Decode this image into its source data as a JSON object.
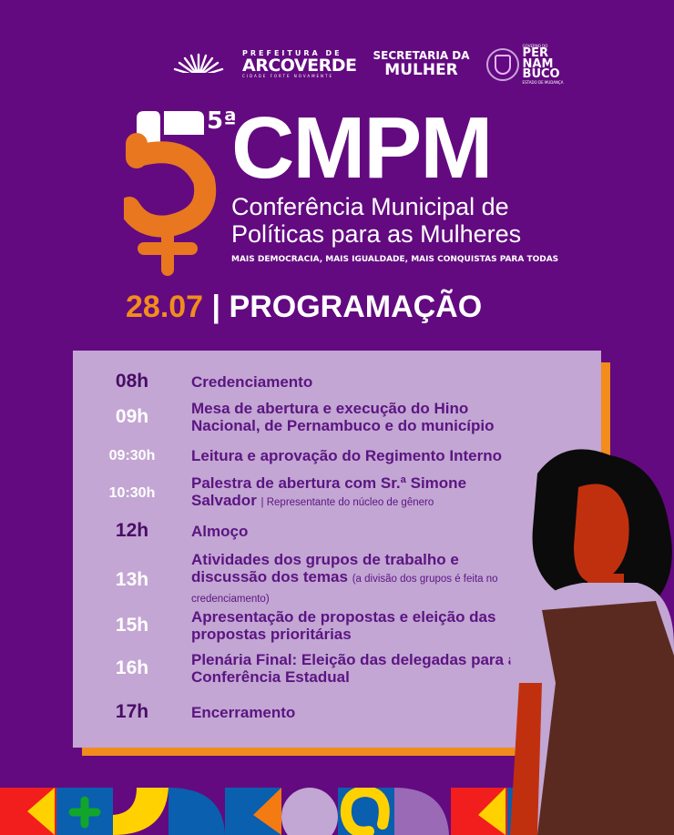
{
  "logos": {
    "prefeitura": {
      "line1": "PREFEITURA DE",
      "line2": "ARCOVERDE",
      "line3": "CIDADE FORTE NOVAMENTE"
    },
    "secretaria": {
      "line1": "SECRETARIA DA",
      "line2": "MULHER"
    },
    "pernambuco": {
      "top": "GOVERNO DO",
      "name": [
        "PER",
        "NAM",
        "BUCO"
      ],
      "motto": "ESTADO DE MUDANÇA"
    }
  },
  "header": {
    "edition": "5ª",
    "acronym": "CMPM",
    "subtitle_line1": "Conferência Municipal de",
    "subtitle_line2": "Políticas para as Mulheres",
    "tagline": "MAIS DEMOCRACIA, MAIS IGUALDADE, MAIS CONQUISTAS PARA TODAS"
  },
  "program": {
    "date": "28.07",
    "separator": "|",
    "title": "PROGRAMAÇÃO"
  },
  "schedule": [
    {
      "time": "08h",
      "text": "Credenciamento",
      "note": ""
    },
    {
      "time": "09h",
      "text": "Mesa de abertura e execução do Hino Nacional, de Pernambuco e do município",
      "note": ""
    },
    {
      "time": "09:30h",
      "text": "Leitura e aprovação do Regimento Interno",
      "note": ""
    },
    {
      "time": "10:30h",
      "text": "Palestra de abertura com Sr.ª Simone Salvador",
      "note": "| Representante do núcleo de gênero"
    },
    {
      "time": "12h",
      "text": "Almoço",
      "note": ""
    },
    {
      "time": "13h",
      "text": "Atividades dos grupos de trabalho e discussão dos temas",
      "note": "(a divisão dos grupos é feita no credenciamento)"
    },
    {
      "time": "15h",
      "text": "Apresentação de propostas e eleição das propostas prioritárias",
      "note": ""
    },
    {
      "time": "16h",
      "text": "Plenária Final: Eleição das delegadas para a Conferência Estadual",
      "note": ""
    },
    {
      "time": "17h",
      "text": "Encerramento",
      "note": ""
    }
  ],
  "colors": {
    "background": "#630a80",
    "panel": "#c3a6d3",
    "accent": "#f28c1c",
    "text": "#5b1582"
  }
}
